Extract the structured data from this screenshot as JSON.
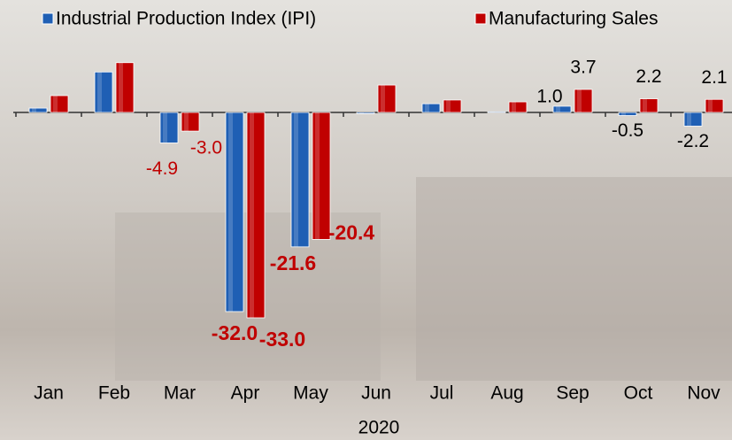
{
  "chart_data": {
    "type": "bar",
    "x_label": "2020",
    "categories": [
      "Jan",
      "Feb",
      "Mar",
      "Apr",
      "May",
      "Jun",
      "Jul",
      "Aug",
      "Sep",
      "Oct",
      "Nov"
    ],
    "series": [
      {
        "name": "Industrial Production Index (IPI)",
        "color": "#1f5fb4",
        "values": [
          0.7,
          6.5,
          -4.9,
          -32.0,
          -21.6,
          -0.2,
          1.4,
          0.1,
          1.0,
          -0.5,
          -2.2
        ],
        "value_labels": [
          null,
          null,
          "-4.9",
          "-32.0",
          null,
          null,
          null,
          null,
          "1.0",
          "-0.5",
          "-2.2"
        ]
      },
      {
        "name": "Manufacturing Sales",
        "color": "#c00000",
        "values": [
          2.7,
          8.0,
          -3.0,
          -33.0,
          -20.4,
          4.4,
          2.0,
          1.7,
          3.7,
          2.2,
          2.1
        ],
        "value_labels": [
          null,
          null,
          "-3.0",
          "-33.0",
          "-20.4",
          null,
          null,
          null,
          "3.7",
          "2.2",
          "2.1"
        ]
      }
    ],
    "extra_labels": [
      {
        "series": 0,
        "index": 4,
        "label": "-21.6"
      }
    ]
  }
}
